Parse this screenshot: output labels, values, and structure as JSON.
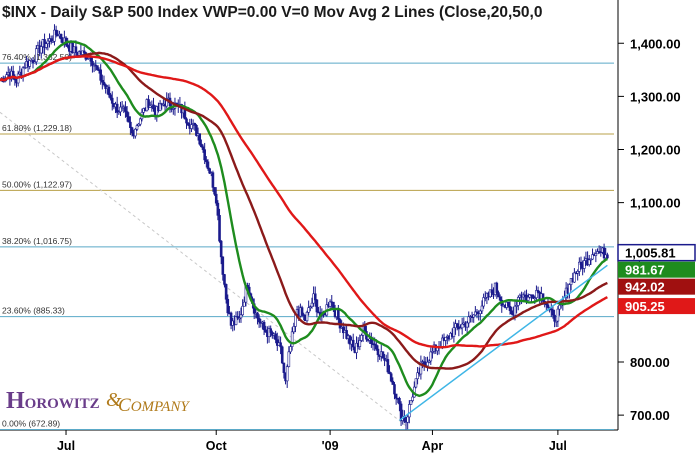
{
  "header": {
    "text": "$INX - Daily  S&P 500 Index  VWP=0.00  V=0  Mov Avg 2 Lines (Close,20,50,0"
  },
  "logo": {
    "h": "H",
    "rest": "OROWITZ",
    "amp": "&",
    "c": "C",
    "rest2": "OMPANY"
  },
  "colors": {
    "candle": "#1a1a8c",
    "ma20": "#1e8c1e",
    "ma50": "#8b1a1a",
    "ma100": "#e01818",
    "fib_line": "#b8a048",
    "trend_line": "#3fb6e6",
    "hline": "#5aa9c8",
    "badge_price": "#1a1a8c",
    "badge_green": "#1e8c1e",
    "badge_dark": "#a01010",
    "badge_red": "#e01818",
    "logo_purple": "#6a3d8a",
    "logo_gold": "#b07a1a"
  },
  "chart_data": {
    "type": "candlestick",
    "title": "$INX - Daily  S&P 500 Index",
    "y_ticks": [
      700,
      800,
      900,
      1000,
      1100,
      1200,
      1300,
      1400
    ],
    "y_tick_labels": [
      "700.00",
      "800.00",
      "900.00",
      "1,000.00",
      "1,100.00",
      "1,200.00",
      "1,300.00",
      "1,400.00"
    ],
    "ylim": [
      672,
      1440
    ],
    "x_labels": [
      {
        "label": "Jul",
        "day": 40
      },
      {
        "label": "Oct",
        "day": 131
      },
      {
        "label": "'09",
        "day": 200
      },
      {
        "label": "Apr",
        "day": 262
      },
      {
        "label": "Jul",
        "day": 338
      }
    ],
    "xlim": [
      0,
      372
    ],
    "fib_levels": [
      {
        "label": "76.40% (1,362.50)",
        "value": 1362.5
      },
      {
        "label": "61.80% (1,229.18)",
        "value": 1229.18
      },
      {
        "label": "50.00% (1,122.97)",
        "value": 1122.97
      },
      {
        "label": "38.20% (1,016.75)",
        "value": 1016.75
      },
      {
        "label": "23.60% (885.33)",
        "value": 885.33
      },
      {
        "label": "0.00% (672.89)",
        "value": 672.89
      }
    ],
    "price_anchors": [
      [
        0,
        1330
      ],
      [
        5,
        1345
      ],
      [
        10,
        1330
      ],
      [
        15,
        1360
      ],
      [
        20,
        1370
      ],
      [
        25,
        1395
      ],
      [
        30,
        1405
      ],
      [
        35,
        1420
      ],
      [
        40,
        1400
      ],
      [
        45,
        1385
      ],
      [
        50,
        1380
      ],
      [
        55,
        1375
      ],
      [
        60,
        1340
      ],
      [
        65,
        1310
      ],
      [
        70,
        1280
      ],
      [
        75,
        1270
      ],
      [
        80,
        1230
      ],
      [
        85,
        1260
      ],
      [
        90,
        1290
      ],
      [
        95,
        1270
      ],
      [
        100,
        1290
      ],
      [
        105,
        1285
      ],
      [
        110,
        1275
      ],
      [
        115,
        1250
      ],
      [
        120,
        1230
      ],
      [
        125,
        1180
      ],
      [
        128,
        1150
      ],
      [
        131,
        1110
      ],
      [
        134,
        1000
      ],
      [
        137,
        920
      ],
      [
        140,
        870
      ],
      [
        145,
        880
      ],
      [
        150,
        950
      ],
      [
        155,
        890
      ],
      [
        160,
        860
      ],
      [
        165,
        850
      ],
      [
        170,
        820
      ],
      [
        173,
        760
      ],
      [
        175,
        810
      ],
      [
        180,
        900
      ],
      [
        185,
        880
      ],
      [
        190,
        920
      ],
      [
        195,
        880
      ],
      [
        200,
        920
      ],
      [
        205,
        880
      ],
      [
        210,
        850
      ],
      [
        215,
        820
      ],
      [
        220,
        860
      ],
      [
        225,
        840
      ],
      [
        230,
        820
      ],
      [
        235,
        790
      ],
      [
        240,
        740
      ],
      [
        243,
        700
      ],
      [
        246,
        690
      ],
      [
        250,
        740
      ],
      [
        255,
        790
      ],
      [
        260,
        810
      ],
      [
        265,
        830
      ],
      [
        270,
        840
      ],
      [
        275,
        860
      ],
      [
        280,
        870
      ],
      [
        285,
        880
      ],
      [
        290,
        900
      ],
      [
        295,
        920
      ],
      [
        300,
        940
      ],
      [
        305,
        910
      ],
      [
        310,
        890
      ],
      [
        315,
        930
      ],
      [
        320,
        920
      ],
      [
        325,
        935
      ],
      [
        330,
        920
      ],
      [
        335,
        880
      ],
      [
        340,
        900
      ],
      [
        345,
        950
      ],
      [
        350,
        975
      ],
      [
        355,
        990
      ],
      [
        360,
        1010
      ],
      [
        365,
        1005
      ]
    ],
    "series": [
      {
        "type": "ma",
        "period": 20
      },
      {
        "type": "ma",
        "period": 50
      },
      {
        "type": "ma",
        "period": 100
      }
    ],
    "trend_line": {
      "from": [
        242,
        690
      ],
      "to": [
        368,
        982
      ]
    },
    "descending_trend": {
      "from": [
        0,
        1270
      ],
      "to": [
        246,
        680
      ]
    },
    "last_price": {
      "value": 1005.81,
      "label": "1,005.81"
    },
    "ma_values": [
      {
        "label": "981.67",
        "value": 981.67
      },
      {
        "label": "942.02",
        "value": 942.02
      },
      {
        "label": "905.25",
        "value": 905.25
      }
    ],
    "hline_levels": [
      1362.5,
      1016.75,
      885.33,
      672.89
    ]
  }
}
